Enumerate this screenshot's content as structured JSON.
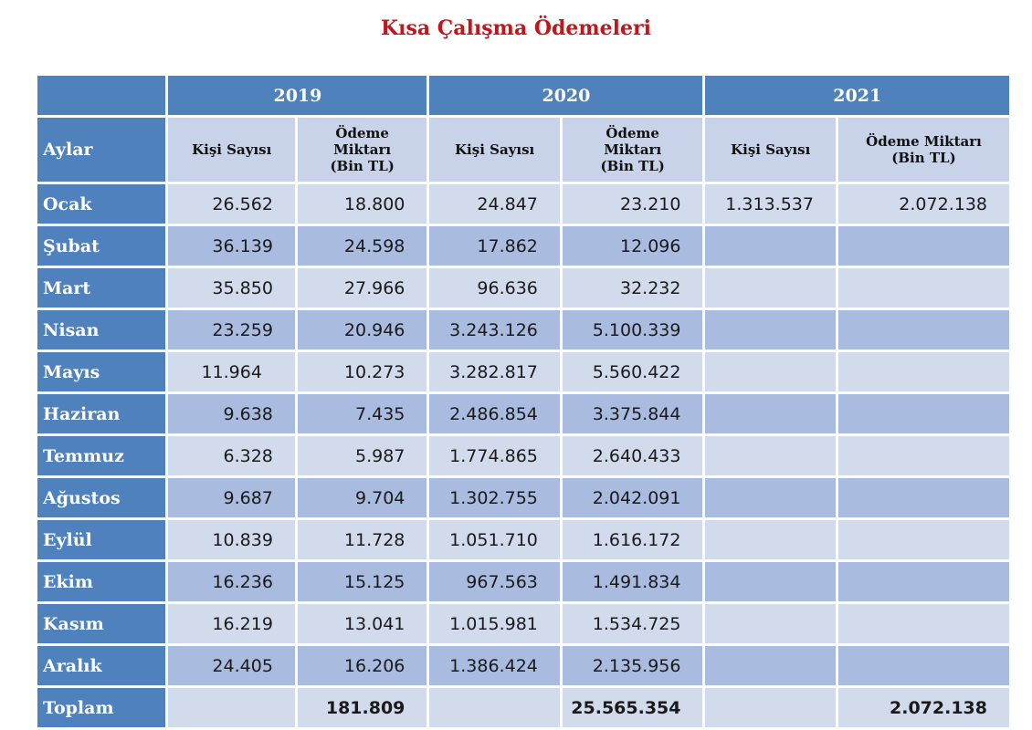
{
  "title": "Kısa Çalışma Ödemeleri",
  "years": [
    "2019",
    "2020",
    "2021"
  ],
  "subheaders": {
    "month": "Aylar",
    "people": "Kişi Sayısı",
    "payment": [
      "Ödeme",
      "Miktarı",
      "(Bin TL)"
    ],
    "payment_2021": [
      "Ödeme Miktarı",
      "(Bin TL)"
    ]
  },
  "rows": [
    {
      "month": "Ocak",
      "p2019": "26.562",
      "a2019": "18.800",
      "p2020": "24.847",
      "a2020": "23.210",
      "p2021": "1.313.537",
      "a2021": "2.072.138"
    },
    {
      "month": "Şubat",
      "p2019": "36.139",
      "a2019": "24.598",
      "p2020": "17.862",
      "a2020": "12.096",
      "p2021": "",
      "a2021": ""
    },
    {
      "month": "Mart",
      "p2019": "35.850",
      "a2019": "27.966",
      "p2020": "96.636",
      "a2020": "32.232",
      "p2021": "",
      "a2021": ""
    },
    {
      "month": "Nisan",
      "p2019": "23.259",
      "a2019": "20.946",
      "p2020": "3.243.126",
      "a2020": "5.100.339",
      "p2021": "",
      "a2021": ""
    },
    {
      "month": "Mayıs",
      "p2019": "11.964",
      "a2019": "10.273",
      "p2020": "3.282.817",
      "a2020": "5.560.422",
      "p2021": "",
      "a2021": ""
    },
    {
      "month": "Haziran",
      "p2019": "9.638",
      "a2019": "7.435",
      "p2020": "2.486.854",
      "a2020": "3.375.844",
      "p2021": "",
      "a2021": ""
    },
    {
      "month": "Temmuz",
      "p2019": "6.328",
      "a2019": "5.987",
      "p2020": "1.774.865",
      "a2020": "2.640.433",
      "p2021": "",
      "a2021": ""
    },
    {
      "month": "Ağustos",
      "p2019": "9.687",
      "a2019": "9.704",
      "p2020": "1.302.755",
      "a2020": "2.042.091",
      "p2021": "",
      "a2021": ""
    },
    {
      "month": "Eylül",
      "p2019": "10.839",
      "a2019": "11.728",
      "p2020": "1.051.710",
      "a2020": "1.616.172",
      "p2021": "",
      "a2021": ""
    },
    {
      "month": "Ekim",
      "p2019": "16.236",
      "a2019": "15.125",
      "p2020": "967.563",
      "a2020": "1.491.834",
      "p2021": "",
      "a2021": ""
    },
    {
      "month": "Kasım",
      "p2019": "16.219",
      "a2019": "13.041",
      "p2020": "1.015.981",
      "a2020": "1.534.725",
      "p2021": "",
      "a2021": ""
    },
    {
      "month": "Aralık",
      "p2019": "24.405",
      "a2019": "16.206",
      "p2020": "1.386.424",
      "a2020": "2.135.956",
      "p2021": "",
      "a2021": ""
    }
  ],
  "total": {
    "label": "Toplam",
    "a2019": "181.809",
    "a2020": "25.565.354",
    "a2021": "2.072.138"
  },
  "colors": {
    "title": "#c0161d",
    "header_blue": "#4f81bd",
    "row_light": "#d2dbec",
    "row_dark": "#a9bce0",
    "subheader": "#c8d3e9"
  }
}
